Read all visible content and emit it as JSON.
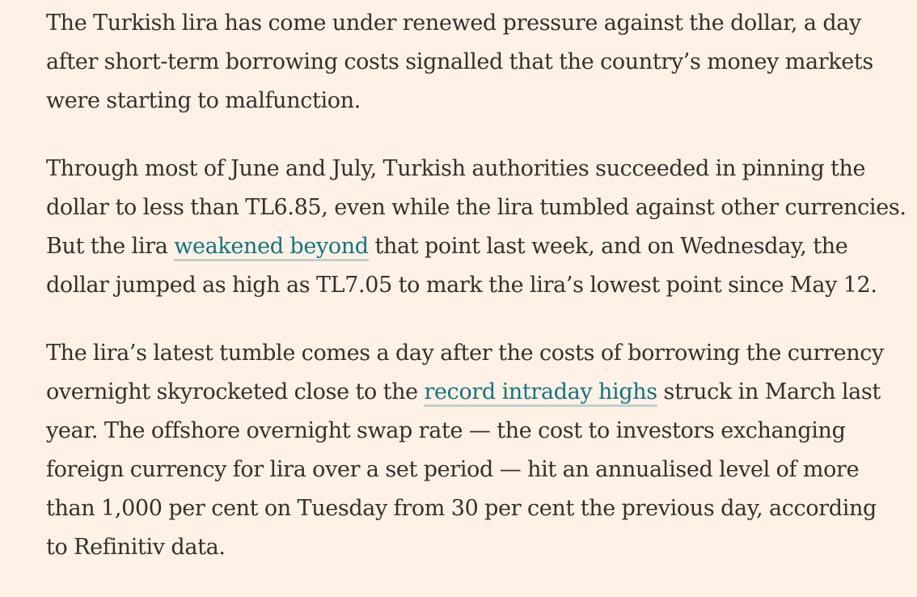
{
  "article": {
    "paragraphs": [
      {
        "lines": [
          "The Turkish lira has come under renewed pressure against the dollar, a day",
          "after short-term borrowing costs signalled that the country’s money markets",
          "were starting to malfunction."
        ]
      },
      {
        "lines": [
          "Through most of June and July, Turkish authorities succeeded in pinning the",
          "dollar to less than TL6.85, even while the lira tumbled against other currencies."
        ],
        "line3_before": "But the lira ",
        "link_weakened": "weakened beyond",
        "line3_after": " that point last week, and on Wednesday, the",
        "line4": "dollar jumped as high as TL7.05 to mark the lira’s lowest point since May 12."
      },
      {
        "line1": "The lira’s latest tumble comes a day after the costs of borrowing the currency",
        "line2_before": "overnight skyrocketed close to the ",
        "link_record": "record intraday highs",
        "line2_after": " struck in March last",
        "rest_lines": [
          "year. The offshore overnight swap rate — the cost to investors exchanging",
          "foreign currency for lira over a set period — hit an annualised level of more",
          "than 1,000 per cent on Tuesday from 30 per cent the previous day, according",
          "to Refinitiv data."
        ]
      }
    ]
  }
}
